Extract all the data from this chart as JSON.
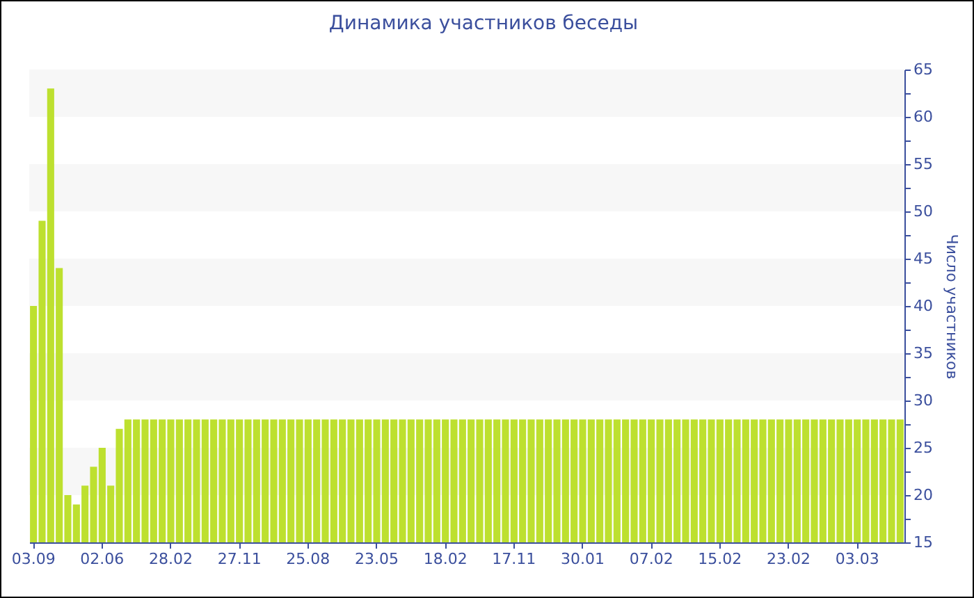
{
  "chart_data": {
    "type": "bar",
    "title": "Динамика участников беседы",
    "ylabel": "Число участников",
    "categories": [
      "03.09",
      null,
      null,
      null,
      null,
      null,
      null,
      null,
      "02.06",
      null,
      null,
      null,
      null,
      null,
      null,
      null,
      "28.02",
      null,
      null,
      null,
      null,
      null,
      null,
      null,
      "27.11",
      null,
      null,
      null,
      null,
      null,
      null,
      null,
      "25.08",
      null,
      null,
      null,
      null,
      null,
      null,
      null,
      "23.05",
      null,
      null,
      null,
      null,
      null,
      null,
      null,
      "18.02",
      null,
      null,
      null,
      null,
      null,
      null,
      null,
      "17.11",
      null,
      null,
      null,
      null,
      null,
      null,
      null,
      "30.01",
      null,
      null,
      null,
      null,
      null,
      null,
      null,
      "07.02",
      null,
      null,
      null,
      null,
      null,
      null,
      null,
      "15.02",
      null,
      null,
      null,
      null,
      null,
      null,
      null,
      "23.02",
      null,
      null,
      null,
      null,
      null,
      null,
      null,
      "03.03",
      null,
      null,
      null,
      null,
      null
    ],
    "values": [
      40,
      49,
      63,
      44,
      20,
      19,
      21,
      23,
      25,
      21,
      27,
      28,
      28,
      28,
      28,
      28,
      28,
      28,
      28,
      28,
      28,
      28,
      28,
      28,
      28,
      28,
      28,
      28,
      28,
      28,
      28,
      28,
      28,
      28,
      28,
      28,
      28,
      28,
      28,
      28,
      28,
      28,
      28,
      28,
      28,
      28,
      28,
      28,
      28,
      28,
      28,
      28,
      28,
      28,
      28,
      28,
      28,
      28,
      28,
      28,
      28,
      28,
      28,
      28,
      28,
      28,
      28,
      28,
      28,
      28,
      28,
      28,
      28,
      28,
      28,
      28,
      28,
      28,
      28,
      28,
      28,
      28,
      28,
      28,
      28,
      28,
      28,
      28,
      28,
      28,
      28,
      28,
      28,
      28,
      28,
      28,
      28,
      28,
      28,
      28,
      28,
      28
    ],
    "color": "#bde02f",
    "ylim": [
      15,
      65
    ],
    "yticks": [
      15,
      {
        "value": 17.5,
        "label": null
      },
      20,
      {
        "value": 22.5,
        "label": null
      },
      25,
      {
        "value": 27.5,
        "label": null
      },
      30,
      {
        "value": 32.5,
        "label": null
      },
      35,
      {
        "value": 37.5,
        "label": null
      },
      40,
      {
        "value": 42.5,
        "label": null
      },
      45,
      {
        "value": 47.5,
        "label": null
      },
      50,
      {
        "value": 52.5,
        "label": null
      },
      55,
      {
        "value": 57.5,
        "label": null
      },
      60,
      {
        "value": 62.5,
        "label": null
      },
      65
    ],
    "bands": [
      {
        "axis": "y",
        "from": 20,
        "to": 25,
        "color": "#f7f7f7"
      },
      {
        "axis": "y",
        "from": 30,
        "to": 35,
        "color": "#f7f7f7"
      },
      {
        "axis": "y",
        "from": 40,
        "to": 45,
        "color": "#f7f7f7"
      },
      {
        "axis": "y",
        "from": 50,
        "to": 55,
        "color": "#f7f7f7"
      },
      {
        "axis": "y",
        "from": 60,
        "to": 65,
        "color": "#f7f7f7"
      }
    ]
  }
}
